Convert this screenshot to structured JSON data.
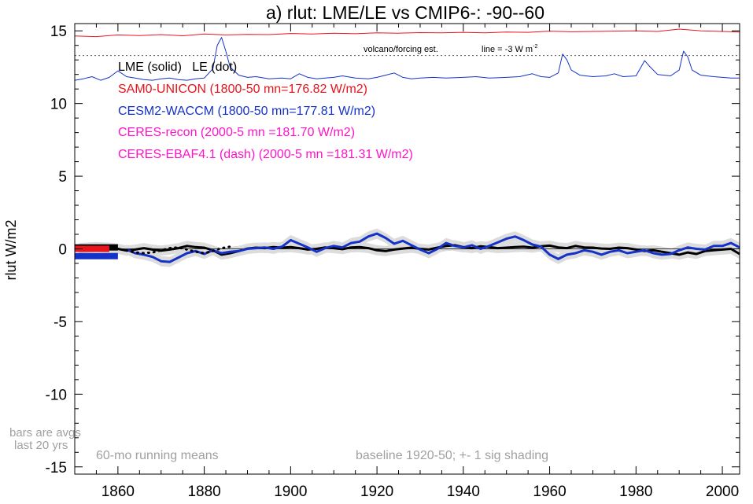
{
  "chart_data": {
    "type": "line",
    "title": "a) rlut: LME/LE vs CMIP6-: -90--60",
    "ylabel": "rlut W/m2",
    "xlabel": "",
    "xlim": [
      1850,
      2004
    ],
    "ylim": [
      -15.5,
      15.5
    ],
    "x_ticks": [
      1860,
      1880,
      1900,
      1920,
      1940,
      1960,
      1980,
      2000
    ],
    "y_ticks": [
      15,
      10,
      5,
      0,
      -5,
      -10,
      -15
    ],
    "x_tick_labels": [
      "1860",
      "1880",
      "1900",
      "1920",
      "1940",
      "1960",
      "1980",
      "2000"
    ],
    "y_tick_labels": [
      "15",
      "10",
      "5",
      "0",
      "-5",
      "-10",
      "-15"
    ],
    "legend": {
      "header": "LME (solid)   LE (dot)",
      "entries": [
        {
          "text": "SAM0-UNICON (1800-50 mn=176.82 W/m2)",
          "color": "#e8141c"
        },
        {
          "text": "CESM2-WACCM (1800-50 mn=177.81 W/m2)",
          "color": "#1432c8"
        },
        {
          "text": "CERES-recon (2000-5 mn =181.70 W/m2)",
          "color": "#ff14c8"
        },
        {
          "text": "CERES-EBAF4.1 (dash) (2000-5 mn =181.31 W/m2)",
          "color": "#ff14c8"
        }
      ]
    },
    "annotations": {
      "volcano_label": "volcano/forcing est.",
      "line_label": "line = -3 W m",
      "line_label_sup": "-2",
      "bars_note_1": "bars are avgs",
      "bars_note_2": "last 20 yrs",
      "running_means": "60-mo running means",
      "baseline": "baseline 1920-50; +- 1 sig shading"
    },
    "reference_line_y": 13.3,
    "series": [
      {
        "name": "SAM0-UNICON",
        "color": "#e8141c",
        "role": "forcing",
        "points": [
          [
            1850,
            14.65
          ],
          [
            1855,
            14.6
          ],
          [
            1860,
            14.72
          ],
          [
            1865,
            14.68
          ],
          [
            1870,
            14.74
          ],
          [
            1875,
            14.66
          ],
          [
            1880,
            14.78
          ],
          [
            1885,
            14.72
          ],
          [
            1890,
            14.76
          ],
          [
            1895,
            14.74
          ],
          [
            1900,
            14.82
          ],
          [
            1905,
            14.78
          ],
          [
            1910,
            14.84
          ],
          [
            1915,
            14.8
          ],
          [
            1920,
            14.86
          ],
          [
            1925,
            14.84
          ],
          [
            1930,
            14.88
          ],
          [
            1935,
            14.86
          ],
          [
            1940,
            14.9
          ],
          [
            1945,
            14.86
          ],
          [
            1950,
            14.92
          ],
          [
            1955,
            14.9
          ],
          [
            1960,
            14.98
          ],
          [
            1965,
            14.94
          ],
          [
            1970,
            14.96
          ],
          [
            1975,
            14.98
          ],
          [
            1980,
            15.0
          ],
          [
            1985,
            14.96
          ],
          [
            1990,
            15.12
          ],
          [
            1995,
            15.0
          ],
          [
            2000,
            14.96
          ],
          [
            2004,
            14.92
          ]
        ]
      },
      {
        "name": "CESM2-WACCM",
        "color": "#1432c8",
        "role": "forcing",
        "points": [
          [
            1850,
            11.6
          ],
          [
            1852,
            11.7
          ],
          [
            1854,
            11.85
          ],
          [
            1856,
            11.6
          ],
          [
            1858,
            11.8
          ],
          [
            1860,
            12.25
          ],
          [
            1862,
            11.85
          ],
          [
            1864,
            11.75
          ],
          [
            1866,
            11.65
          ],
          [
            1868,
            11.6
          ],
          [
            1870,
            11.7
          ],
          [
            1872,
            11.75
          ],
          [
            1874,
            11.65
          ],
          [
            1876,
            11.6
          ],
          [
            1878,
            11.7
          ],
          [
            1880,
            11.75
          ],
          [
            1882,
            12.4
          ],
          [
            1883,
            14.0
          ],
          [
            1884,
            14.55
          ],
          [
            1885,
            13.6
          ],
          [
            1886,
            12.5
          ],
          [
            1888,
            11.95
          ],
          [
            1890,
            11.8
          ],
          [
            1892,
            11.85
          ],
          [
            1895,
            11.7
          ],
          [
            1898,
            11.75
          ],
          [
            1900,
            11.7
          ],
          [
            1902,
            12.05
          ],
          [
            1904,
            11.8
          ],
          [
            1906,
            11.7
          ],
          [
            1908,
            11.75
          ],
          [
            1910,
            11.8
          ],
          [
            1912,
            11.9
          ],
          [
            1915,
            11.75
          ],
          [
            1918,
            11.7
          ],
          [
            1920,
            11.8
          ],
          [
            1922,
            11.95
          ],
          [
            1924,
            12.1
          ],
          [
            1926,
            11.8
          ],
          [
            1928,
            11.7
          ],
          [
            1930,
            11.75
          ],
          [
            1933,
            11.8
          ],
          [
            1936,
            11.75
          ],
          [
            1940,
            11.8
          ],
          [
            1943,
            11.85
          ],
          [
            1946,
            11.75
          ],
          [
            1950,
            11.8
          ],
          [
            1953,
            11.85
          ],
          [
            1956,
            12.05
          ],
          [
            1958,
            11.85
          ],
          [
            1960,
            11.8
          ],
          [
            1962,
            12.1
          ],
          [
            1963,
            13.4
          ],
          [
            1964,
            13.0
          ],
          [
            1965,
            12.3
          ],
          [
            1967,
            11.95
          ],
          [
            1970,
            11.85
          ],
          [
            1973,
            11.9
          ],
          [
            1975,
            12.05
          ],
          [
            1977,
            11.85
          ],
          [
            1980,
            11.9
          ],
          [
            1982,
            12.95
          ],
          [
            1983,
            12.6
          ],
          [
            1985,
            12.0
          ],
          [
            1988,
            11.9
          ],
          [
            1990,
            12.3
          ],
          [
            1991,
            13.6
          ],
          [
            1992,
            13.2
          ],
          [
            1993,
            12.3
          ],
          [
            1995,
            11.95
          ],
          [
            1998,
            11.85
          ],
          [
            2000,
            11.8
          ],
          [
            2002,
            11.75
          ],
          [
            2004,
            11.75
          ]
        ]
      },
      {
        "name": "LME ensemble mean (solid)",
        "color": "#000000",
        "role": "main",
        "points": [
          [
            1851,
            0.05
          ],
          [
            1855,
            0.12
          ],
          [
            1858,
            0.08
          ],
          [
            1860,
            0.0
          ],
          [
            1862,
            -0.12
          ],
          [
            1864,
            -0.05
          ],
          [
            1866,
            0.05
          ],
          [
            1868,
            -0.05
          ],
          [
            1870,
            -0.12
          ],
          [
            1872,
            -0.05
          ],
          [
            1874,
            0.05
          ],
          [
            1876,
            0.2
          ],
          [
            1878,
            0.12
          ],
          [
            1880,
            0.08
          ],
          [
            1882,
            -0.1
          ],
          [
            1884,
            -0.4
          ],
          [
            1886,
            -0.3
          ],
          [
            1888,
            -0.15
          ],
          [
            1890,
            0.02
          ],
          [
            1892,
            0.08
          ],
          [
            1894,
            0.05
          ],
          [
            1896,
            0.12
          ],
          [
            1898,
            0.08
          ],
          [
            1900,
            0.12
          ],
          [
            1902,
            0.05
          ],
          [
            1904,
            -0.05
          ],
          [
            1906,
            0.0
          ],
          [
            1908,
            0.1
          ],
          [
            1910,
            0.05
          ],
          [
            1912,
            -0.02
          ],
          [
            1914,
            0.1
          ],
          [
            1916,
            0.12
          ],
          [
            1918,
            0.05
          ],
          [
            1920,
            -0.1
          ],
          [
            1922,
            -0.15
          ],
          [
            1924,
            -0.05
          ],
          [
            1926,
            0.02
          ],
          [
            1928,
            0.08
          ],
          [
            1930,
            0.0
          ],
          [
            1932,
            -0.05
          ],
          [
            1934,
            0.08
          ],
          [
            1936,
            0.2
          ],
          [
            1938,
            0.25
          ],
          [
            1940,
            0.12
          ],
          [
            1942,
            0.05
          ],
          [
            1944,
            0.18
          ],
          [
            1946,
            0.12
          ],
          [
            1948,
            0.05
          ],
          [
            1950,
            0.08
          ],
          [
            1952,
            0.12
          ],
          [
            1954,
            0.15
          ],
          [
            1956,
            0.08
          ],
          [
            1958,
            0.18
          ],
          [
            1960,
            0.22
          ],
          [
            1962,
            0.1
          ],
          [
            1964,
            0.05
          ],
          [
            1966,
            0.2
          ],
          [
            1968,
            0.1
          ],
          [
            1970,
            0.08
          ],
          [
            1972,
            0.02
          ],
          [
            1974,
            0.0
          ],
          [
            1976,
            0.08
          ],
          [
            1978,
            0.05
          ],
          [
            1980,
            -0.05
          ],
          [
            1982,
            -0.15
          ],
          [
            1984,
            -0.1
          ],
          [
            1986,
            -0.2
          ],
          [
            1988,
            -0.3
          ],
          [
            1990,
            -0.4
          ],
          [
            1992,
            -0.25
          ],
          [
            1994,
            -0.35
          ],
          [
            1996,
            -0.15
          ],
          [
            1998,
            -0.1
          ],
          [
            2000,
            -0.05
          ],
          [
            2002,
            0.0
          ],
          [
            2004,
            -0.35
          ]
        ]
      },
      {
        "name": "CESM2-WACCM (solid)",
        "color": "#1432c8",
        "role": "main",
        "points": [
          [
            1862,
            -0.05
          ],
          [
            1864,
            -0.3
          ],
          [
            1866,
            -0.4
          ],
          [
            1868,
            -0.55
          ],
          [
            1870,
            -0.85
          ],
          [
            1872,
            -0.9
          ],
          [
            1874,
            -0.6
          ],
          [
            1876,
            -0.3
          ],
          [
            1878,
            -0.15
          ],
          [
            1880,
            -0.35
          ],
          [
            1882,
            -0.1
          ],
          [
            1884,
            -0.3
          ],
          [
            1886,
            -0.2
          ],
          [
            1888,
            -0.15
          ],
          [
            1890,
            0.0
          ],
          [
            1892,
            0.05
          ],
          [
            1894,
            0.1
          ],
          [
            1896,
            0.0
          ],
          [
            1898,
            0.15
          ],
          [
            1900,
            0.6
          ],
          [
            1902,
            0.35
          ],
          [
            1904,
            0.1
          ],
          [
            1906,
            -0.2
          ],
          [
            1908,
            0.05
          ],
          [
            1910,
            0.2
          ],
          [
            1912,
            0.1
          ],
          [
            1914,
            0.4
          ],
          [
            1916,
            0.5
          ],
          [
            1918,
            0.85
          ],
          [
            1920,
            1.05
          ],
          [
            1922,
            0.75
          ],
          [
            1924,
            0.35
          ],
          [
            1926,
            0.55
          ],
          [
            1928,
            0.25
          ],
          [
            1930,
            -0.05
          ],
          [
            1932,
            -0.3
          ],
          [
            1934,
            0.0
          ],
          [
            1936,
            0.4
          ],
          [
            1938,
            0.2
          ],
          [
            1940,
            0.1
          ],
          [
            1942,
            0.25
          ],
          [
            1944,
            0.0
          ],
          [
            1946,
            0.2
          ],
          [
            1948,
            0.45
          ],
          [
            1950,
            0.7
          ],
          [
            1952,
            0.85
          ],
          [
            1954,
            0.6
          ],
          [
            1956,
            0.3
          ],
          [
            1958,
            0.15
          ],
          [
            1960,
            -0.4
          ],
          [
            1962,
            -0.7
          ],
          [
            1964,
            -0.4
          ],
          [
            1966,
            -0.3
          ],
          [
            1968,
            -0.1
          ],
          [
            1970,
            -0.2
          ],
          [
            1972,
            -0.4
          ],
          [
            1974,
            -0.2
          ],
          [
            1976,
            -0.1
          ],
          [
            1978,
            -0.3
          ],
          [
            1980,
            -0.2
          ],
          [
            1982,
            -0.1
          ],
          [
            1984,
            -0.3
          ],
          [
            1986,
            -0.4
          ],
          [
            1988,
            -0.35
          ],
          [
            1990,
            -0.1
          ],
          [
            1992,
            0.1
          ],
          [
            1994,
            0.0
          ],
          [
            1996,
            -0.05
          ],
          [
            1998,
            0.2
          ],
          [
            2000,
            0.2
          ],
          [
            2002,
            0.4
          ],
          [
            2004,
            0.1
          ]
        ]
      },
      {
        "name": "LE (dot)",
        "color": "#000000",
        "role": "dotted",
        "points": [
          [
            1862,
            -0.1
          ],
          [
            1864,
            -0.25
          ],
          [
            1866,
            -0.3
          ],
          [
            1868,
            -0.25
          ],
          [
            1870,
            -0.1
          ],
          [
            1872,
            0.05
          ],
          [
            1874,
            0.1
          ],
          [
            1876,
            -0.05
          ],
          [
            1878,
            -0.2
          ],
          [
            1880,
            -0.3
          ],
          [
            1882,
            -0.15
          ],
          [
            1884,
            0.05
          ],
          [
            1886,
            0.15
          ]
        ]
      }
    ],
    "bars": [
      {
        "name": "LME bar",
        "color": "#000000",
        "x": [
          1850,
          1860
        ],
        "y": 0.1
      },
      {
        "name": "SAM0-UNICON bar",
        "color": "#e8141c",
        "x": [
          1850,
          1858
        ],
        "y": 0.0
      },
      {
        "name": "CESM2-WACCM bar",
        "color": "#1432c8",
        "x": [
          1850,
          1860
        ],
        "y": -0.5
      }
    ]
  }
}
